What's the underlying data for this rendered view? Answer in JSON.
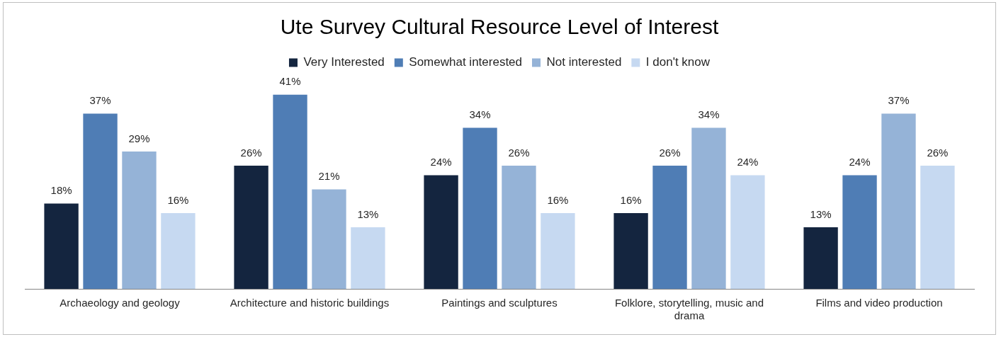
{
  "chart_data": {
    "type": "bar",
    "title": "Ute Survey Cultural Resource Level of Interest",
    "categories": [
      "Archaeology and geology",
      "Architecture and historic buildings",
      "Paintings and sculptures",
      "Folklore, storytelling, music and drama",
      "Films and video production"
    ],
    "series": [
      {
        "name": "Very Interested",
        "color": "#14253f",
        "values": [
          18,
          26,
          24,
          16,
          13
        ],
        "value_labels": [
          "18%",
          "26%",
          "24%",
          "16%",
          "13%"
        ]
      },
      {
        "name": "Somewhat interested",
        "color": "#4f7db5",
        "values": [
          37,
          41,
          34,
          26,
          24
        ],
        "value_labels": [
          "37%",
          "41%",
          "34%",
          "26%",
          "24%"
        ]
      },
      {
        "name": "Not interested",
        "color": "#95b3d7",
        "values": [
          29,
          21,
          26,
          34,
          37
        ],
        "value_labels": [
          "29%",
          "21%",
          "26%",
          "34%",
          "37%"
        ]
      },
      {
        "name": "I don't know",
        "color": "#c6d9f1",
        "values": [
          16,
          13,
          16,
          24,
          26
        ],
        "value_labels": [
          "16%",
          "13%",
          "16%",
          "24%",
          "26%"
        ]
      }
    ],
    "legend": "top",
    "grid": false,
    "tick_labels": "x"
  }
}
